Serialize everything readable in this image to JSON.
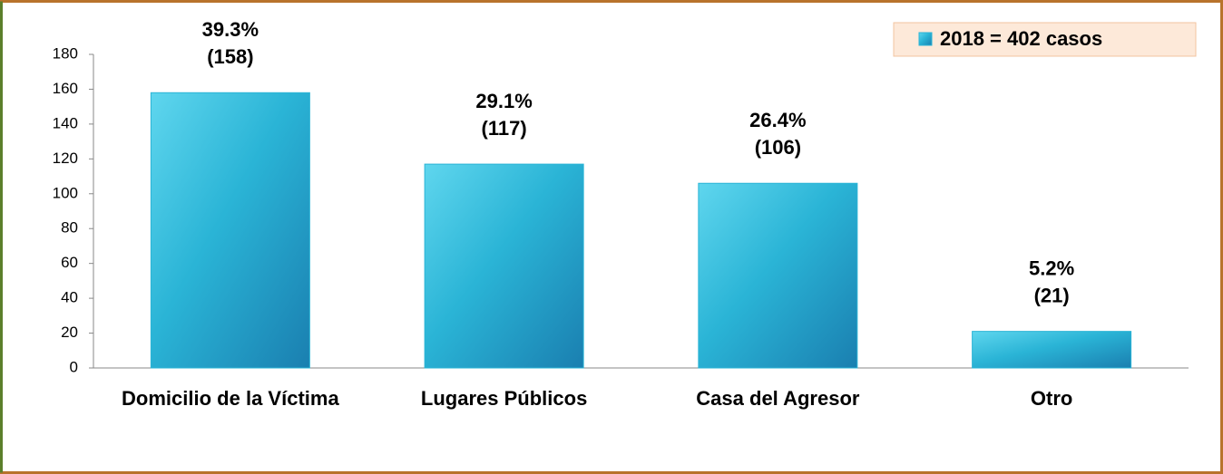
{
  "chart_data": {
    "type": "bar",
    "categories": [
      "Domicilio de la Víctima",
      "Lugares Públicos",
      "Casa del Agresor",
      "Otro"
    ],
    "series": [
      {
        "name": "2018 =  402 casos",
        "color": "#2ab4d6",
        "values": [
          158,
          117,
          106,
          21
        ],
        "value_labels": [
          "(158)",
          "(117)",
          "(106)",
          "(21)"
        ],
        "percent_labels": [
          "39.3%",
          "29.1%",
          "26.4%",
          "5.2%"
        ]
      }
    ],
    "ylim": [
      0,
      180
    ],
    "yticks": [
      0,
      20,
      40,
      60,
      80,
      100,
      120,
      140,
      160,
      180
    ],
    "legend": "top-right"
  }
}
